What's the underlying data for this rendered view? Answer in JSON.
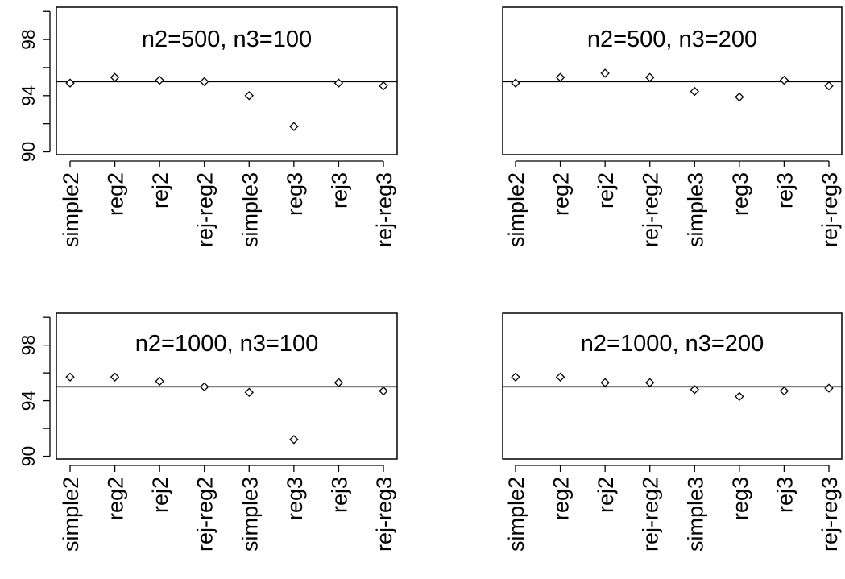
{
  "chart_data": [
    {
      "type": "scatter",
      "title": "n2=500, n3=100",
      "categories": [
        "simple2",
        "reg2",
        "rej2",
        "rej-reg2",
        "simple3",
        "reg3",
        "rej3",
        "rej-reg3"
      ],
      "values": [
        94.9,
        95.3,
        95.1,
        95.0,
        94.0,
        91.8,
        94.9,
        94.7
      ],
      "ylim": [
        89.8,
        100.3
      ],
      "yticks": [
        "90",
        "94",
        "98"
      ],
      "reference_line": 95,
      "show_y_axis": true
    },
    {
      "type": "scatter",
      "title": "n2=500, n3=200",
      "categories": [
        "simple2",
        "reg2",
        "rej2",
        "rej-reg2",
        "simple3",
        "reg3",
        "rej3",
        "rej-reg3"
      ],
      "values": [
        94.9,
        95.3,
        95.6,
        95.3,
        94.3,
        93.9,
        95.1,
        94.7
      ],
      "ylim": [
        89.8,
        100.3
      ],
      "yticks": [],
      "reference_line": 95,
      "show_y_axis": false
    },
    {
      "type": "scatter",
      "title": "n2=1000, n3=100",
      "categories": [
        "simple2",
        "reg2",
        "rej2",
        "rej-reg2",
        "simple3",
        "reg3",
        "rej3",
        "rej-reg3"
      ],
      "values": [
        95.7,
        95.7,
        95.4,
        95.0,
        94.6,
        91.2,
        95.3,
        94.7
      ],
      "ylim": [
        89.8,
        100.3
      ],
      "yticks": [
        "90",
        "94",
        "98"
      ],
      "reference_line": 95,
      "show_y_axis": true
    },
    {
      "type": "scatter",
      "title": "n2=1000, n3=200",
      "categories": [
        "simple2",
        "reg2",
        "rej2",
        "rej-reg2",
        "simple3",
        "reg3",
        "rej3",
        "rej-reg3"
      ],
      "values": [
        95.7,
        95.7,
        95.3,
        95.3,
        94.8,
        94.3,
        94.7,
        94.9
      ],
      "ylim": [
        89.8,
        100.3
      ],
      "yticks": [],
      "reference_line": 95,
      "show_y_axis": false
    }
  ]
}
